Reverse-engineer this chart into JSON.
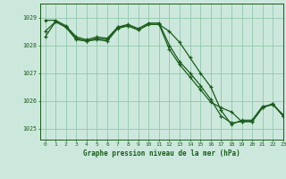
{
  "title": "Graphe pression niveau de la mer (hPa)",
  "bg_color": "#cce8dc",
  "grid_color": "#99ccb3",
  "line_color": "#1a5c1a",
  "xlim": [
    -0.5,
    23
  ],
  "ylim": [
    1024.6,
    1029.5
  ],
  "yticks": [
    1025,
    1026,
    1027,
    1028,
    1029
  ],
  "xticks": [
    0,
    1,
    2,
    3,
    4,
    5,
    6,
    7,
    8,
    9,
    10,
    11,
    12,
    13,
    14,
    15,
    16,
    17,
    18,
    19,
    20,
    21,
    22,
    23
  ],
  "series": [
    [
      1028.3,
      1028.85,
      1028.65,
      1028.2,
      1028.15,
      1028.2,
      1028.15,
      1028.6,
      1028.7,
      1028.55,
      1028.75,
      1028.75,
      1028.5,
      1028.1,
      1027.55,
      1027.0,
      1026.5,
      1025.65,
      1025.15,
      1025.3,
      1025.3,
      1025.8,
      1025.85,
      1025.5
    ],
    [
      1028.9,
      1028.9,
      1028.7,
      1028.3,
      1028.2,
      1028.3,
      1028.25,
      1028.65,
      1028.75,
      1028.6,
      1028.8,
      1028.8,
      1028.0,
      1027.4,
      1027.0,
      1026.55,
      1026.05,
      1025.45,
      1025.2,
      1025.25,
      1025.25,
      1025.75,
      1025.9,
      1025.45
    ],
    [
      1028.5,
      1028.85,
      1028.65,
      1028.25,
      1028.15,
      1028.25,
      1028.2,
      1028.65,
      1028.7,
      1028.55,
      1028.75,
      1028.75,
      1027.85,
      1027.3,
      1026.85,
      1026.4,
      1025.95,
      1025.75,
      1025.6,
      1025.25,
      1025.25,
      1025.75,
      1025.88,
      1025.45
    ]
  ]
}
